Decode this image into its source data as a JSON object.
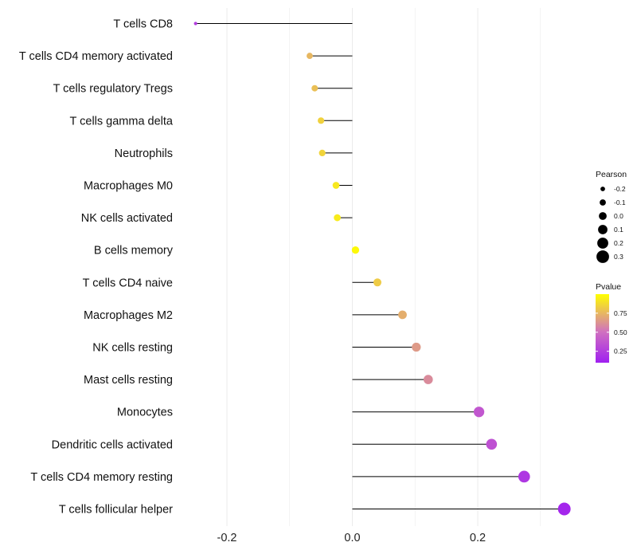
{
  "chart_data": {
    "type": "lollipop",
    "title": "",
    "xlabel": "",
    "ylabel": "",
    "xlim": [
      -0.285,
      0.345
    ],
    "xticks": [
      -0.2,
      0.0,
      0.2
    ],
    "xtick_labels": [
      "-0.2",
      "0.0",
      "0.2"
    ],
    "grid": true,
    "categories": [
      "T cells CD8",
      "T cells CD4 memory activated",
      "T cells regulatory  Tregs",
      "T cells gamma delta",
      "Neutrophils",
      "Macrophages M0",
      "NK cells activated",
      "B cells memory",
      "T cells CD4 naive",
      "Macrophages M2",
      "NK cells resting",
      "Mast cells resting",
      "Monocytes",
      "Dendritic cells activated",
      "T cells CD4 memory resting",
      "T cells follicular helper"
    ],
    "pearson": [
      -0.25,
      -0.068,
      -0.06,
      -0.05,
      -0.048,
      -0.026,
      -0.024,
      0.005,
      0.04,
      0.08,
      0.102,
      0.121,
      0.202,
      0.222,
      0.274,
      0.338
    ],
    "pvalue": [
      0.25,
      0.75,
      0.78,
      0.84,
      0.85,
      0.92,
      0.93,
      0.98,
      0.82,
      0.72,
      0.65,
      0.6,
      0.38,
      0.35,
      0.22,
      0.13
    ],
    "size_legend": {
      "title": "Pearson",
      "values": [
        -0.2,
        -0.1,
        0.0,
        0.1,
        0.2,
        0.3
      ],
      "labels": [
        "-0.2",
        "-0.1",
        "0.0",
        "0.1",
        "0.2",
        "0.3"
      ]
    },
    "color_legend": {
      "title": "Pvalue",
      "range": [
        0.1,
        1.0
      ],
      "ticks": [
        0.75,
        0.5,
        0.25
      ],
      "labels": [
        "0.75",
        "0.50",
        "0.25"
      ],
      "low_color": "#a020f0",
      "mid_color": "#d070c0",
      "high_color": "#ffff00"
    },
    "grid_color": "#ebebeb",
    "stem_color": "#000000"
  }
}
